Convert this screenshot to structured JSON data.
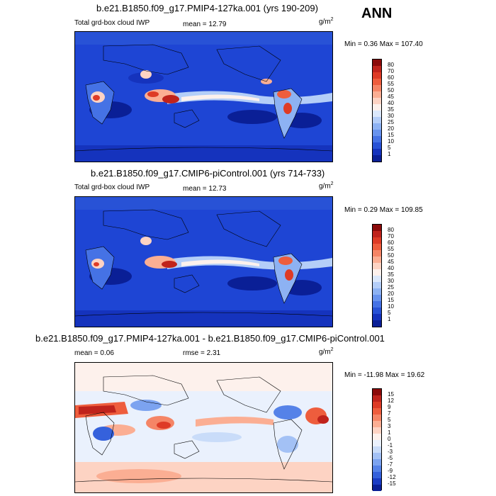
{
  "season": "ANN",
  "panels": [
    {
      "title": "b.e21.B1850.f09_g17.PMIP4-127ka.001 (yrs 190-209)",
      "left_label": "Total grd-box cloud IWP",
      "mean_text": "mean =  12.79",
      "units": "g/m",
      "units_exp": "2",
      "minmax": "Min =   0.36 Max = 107.40",
      "colorbar": {
        "labels": [
          "80",
          "70",
          "60",
          "55",
          "50",
          "45",
          "40",
          "35",
          "30",
          "25",
          "20",
          "15",
          "10",
          "5",
          "1"
        ],
        "colors": [
          "#8b0a0a",
          "#c0231c",
          "#de3b26",
          "#ee5d3d",
          "#f58566",
          "#fbae93",
          "#fdd3c3",
          "#fdf1ec",
          "#dbe8fb",
          "#b4cef8",
          "#8db2f3",
          "#6893ee",
          "#4572e5",
          "#2852d6",
          "#1533bd",
          "#0a1f96"
        ]
      }
    },
    {
      "title": "b.e21.B1850.f09_g17.CMIP6-piControl.001 (yrs 714-733)",
      "left_label": "Total grd-box cloud IWP",
      "mean_text": "mean =  12.73",
      "units": "g/m",
      "units_exp": "2",
      "minmax": "Min =   0.29 Max = 109.85",
      "colorbar": {
        "labels": [
          "80",
          "70",
          "60",
          "55",
          "50",
          "45",
          "40",
          "35",
          "30",
          "25",
          "20",
          "15",
          "10",
          "5",
          "1"
        ],
        "colors": [
          "#8b0a0a",
          "#c0231c",
          "#de3b26",
          "#ee5d3d",
          "#f58566",
          "#fbae93",
          "#fdd3c3",
          "#fdf1ec",
          "#dbe8fb",
          "#b4cef8",
          "#8db2f3",
          "#6893ee",
          "#4572e5",
          "#2852d6",
          "#1533bd",
          "#0a1f96"
        ]
      }
    },
    {
      "title": "b.e21.B1850.f09_g17.PMIP4-127ka.001 - b.e21.B1850.f09_g17.CMIP6-piControl.001",
      "mean_text": "mean =   0.06",
      "rmse_text": "rmse =   2.31",
      "units": "g/m",
      "units_exp": "2",
      "minmax": "Min = -11.98 Max =  19.62",
      "colorbar": {
        "labels": [
          "15",
          "12",
          "9",
          "7",
          "5",
          "3",
          "1",
          "0",
          "-1",
          "-3",
          "-5",
          "-7",
          "-9",
          "-12",
          "-15"
        ],
        "colors": [
          "#8b0a0a",
          "#c0231c",
          "#de3b26",
          "#ee5d3d",
          "#f58566",
          "#fbae93",
          "#fdd3c3",
          "#fdf1ec",
          "#eaf1fd",
          "#c9dcf9",
          "#a3c1f5",
          "#7ca3f0",
          "#5582e8",
          "#3561dc",
          "#1a3cc4",
          "#0a1f96"
        ]
      }
    }
  ]
}
